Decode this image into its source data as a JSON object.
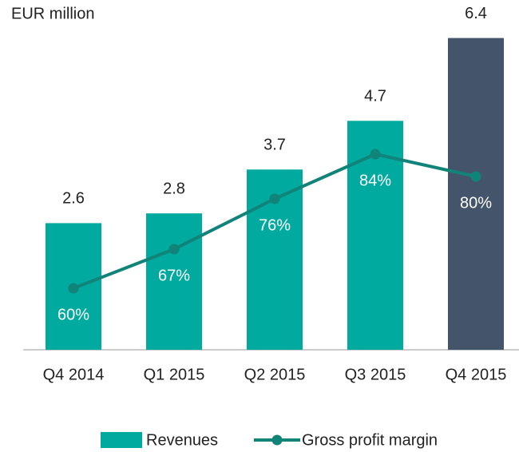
{
  "chart_data": {
    "type": "bar",
    "title": "EUR million",
    "categories": [
      "Q4 2014",
      "Q1 2015",
      "Q2 2015",
      "Q3 2015",
      "Q4 2015"
    ],
    "series": [
      {
        "name": "Revenues",
        "type": "bar",
        "color": "#00aa9e",
        "colors": [
          "#00aa9e",
          "#00aa9e",
          "#00aa9e",
          "#00aa9e",
          "#44546a"
        ],
        "values": [
          2.6,
          2.8,
          3.7,
          4.7,
          6.4
        ]
      },
      {
        "name": "Gross profit margin",
        "type": "line",
        "axis": "y2",
        "color": "#11847a",
        "values": [
          60,
          67,
          76,
          84,
          80
        ],
        "value_labels": [
          "60%",
          "67%",
          "76%",
          "84%",
          "80%"
        ]
      }
    ],
    "ylim": [
      0,
      7
    ],
    "y2lim": [
      49,
      110
    ],
    "legend": "bottom"
  }
}
